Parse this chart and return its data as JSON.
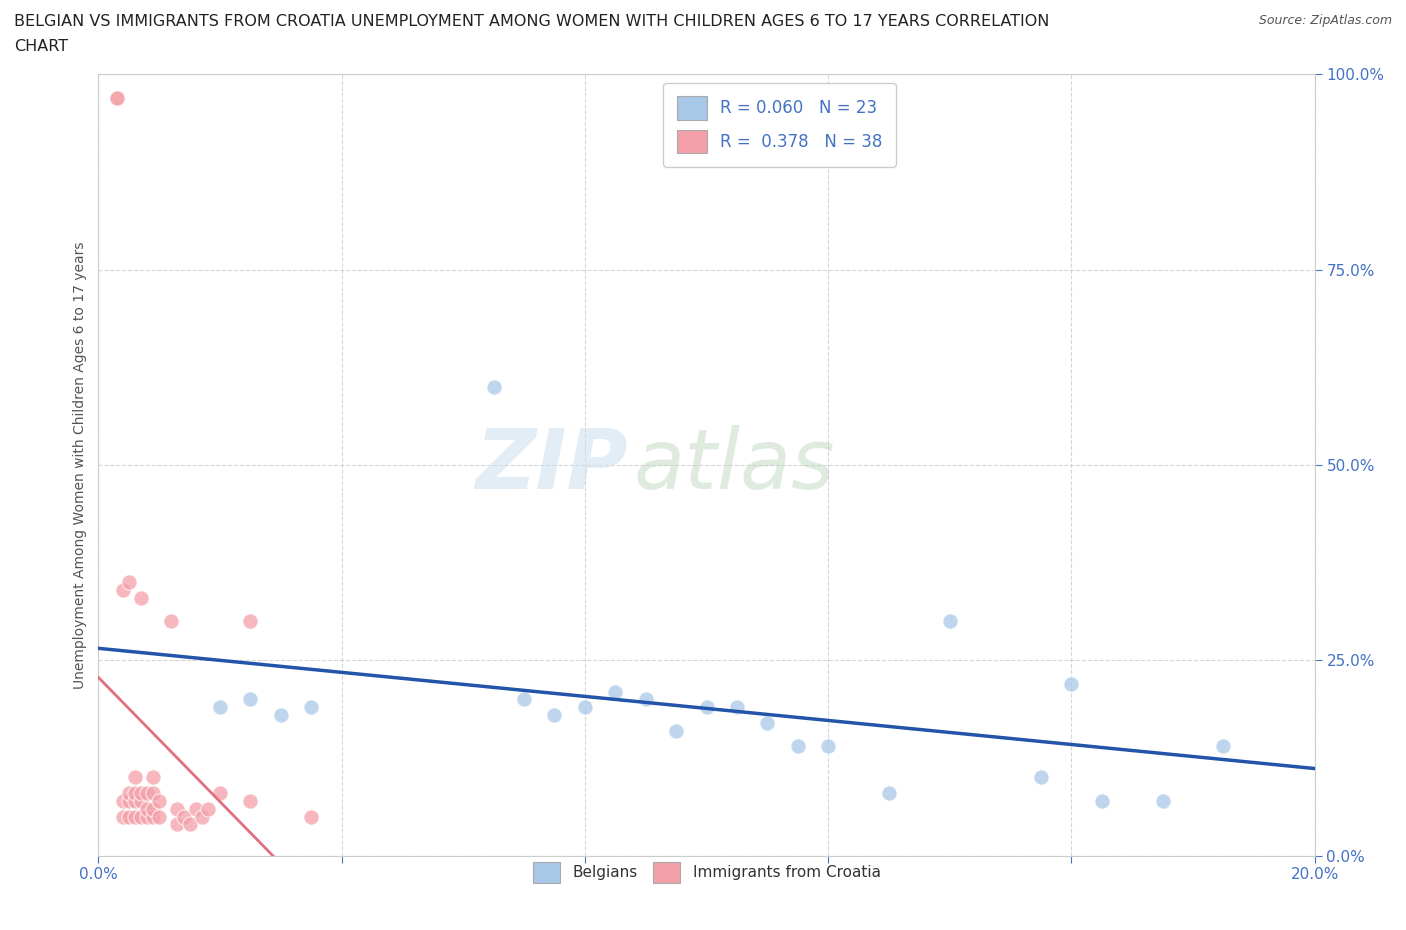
{
  "title_line1": "BELGIAN VS IMMIGRANTS FROM CROATIA UNEMPLOYMENT AMONG WOMEN WITH CHILDREN AGES 6 TO 17 YEARS CORRELATION",
  "title_line2": "CHART",
  "source": "Source: ZipAtlas.com",
  "ylabel": "Unemployment Among Women with Children Ages 6 to 17 years",
  "xlim": [
    0.0,
    0.2
  ],
  "ylim": [
    0.0,
    1.0
  ],
  "xticks": [
    0.0,
    0.04,
    0.08,
    0.12,
    0.16,
    0.2
  ],
  "yticks": [
    0.0,
    0.25,
    0.5,
    0.75,
    1.0
  ],
  "grid_color": "#cccccc",
  "background_color": "#ffffff",
  "belgian_color": "#a8c8e8",
  "croatia_color": "#f4a0a8",
  "belgian_trend_color": "#2255aa",
  "croatia_trend_color": "#e07080",
  "belgian_R": 0.06,
  "belgian_N": 23,
  "croatia_R": 0.378,
  "croatia_N": 38,
  "watermark_zip": "ZIP",
  "watermark_atlas": "atlas",
  "legend_R_color": "#4472c4",
  "legend_N_color": "#4472c4",
  "belgians_x": [
    0.02,
    0.025,
    0.03,
    0.035,
    0.065,
    0.07,
    0.075,
    0.08,
    0.085,
    0.09,
    0.095,
    0.1,
    0.105,
    0.11,
    0.115,
    0.12,
    0.13,
    0.14,
    0.155,
    0.16,
    0.165,
    0.175,
    0.185
  ],
  "belgians_y": [
    0.19,
    0.2,
    0.18,
    0.19,
    0.6,
    0.2,
    0.18,
    0.19,
    0.21,
    0.2,
    0.16,
    0.19,
    0.19,
    0.17,
    0.14,
    0.14,
    0.08,
    0.3,
    0.1,
    0.22,
    0.07,
    0.07,
    0.14
  ],
  "croatia_x": [
    0.003,
    0.003,
    0.004,
    0.004,
    0.004,
    0.005,
    0.005,
    0.005,
    0.005,
    0.006,
    0.006,
    0.006,
    0.006,
    0.007,
    0.007,
    0.007,
    0.007,
    0.008,
    0.008,
    0.008,
    0.009,
    0.009,
    0.009,
    0.009,
    0.01,
    0.01,
    0.012,
    0.013,
    0.013,
    0.014,
    0.015,
    0.016,
    0.017,
    0.018,
    0.02,
    0.025,
    0.025,
    0.035
  ],
  "croatia_y": [
    0.97,
    0.97,
    0.05,
    0.07,
    0.34,
    0.05,
    0.07,
    0.08,
    0.35,
    0.05,
    0.07,
    0.08,
    0.1,
    0.05,
    0.07,
    0.08,
    0.33,
    0.05,
    0.06,
    0.08,
    0.05,
    0.06,
    0.08,
    0.1,
    0.05,
    0.07,
    0.3,
    0.04,
    0.06,
    0.05,
    0.04,
    0.06,
    0.05,
    0.06,
    0.08,
    0.07,
    0.3,
    0.05
  ]
}
